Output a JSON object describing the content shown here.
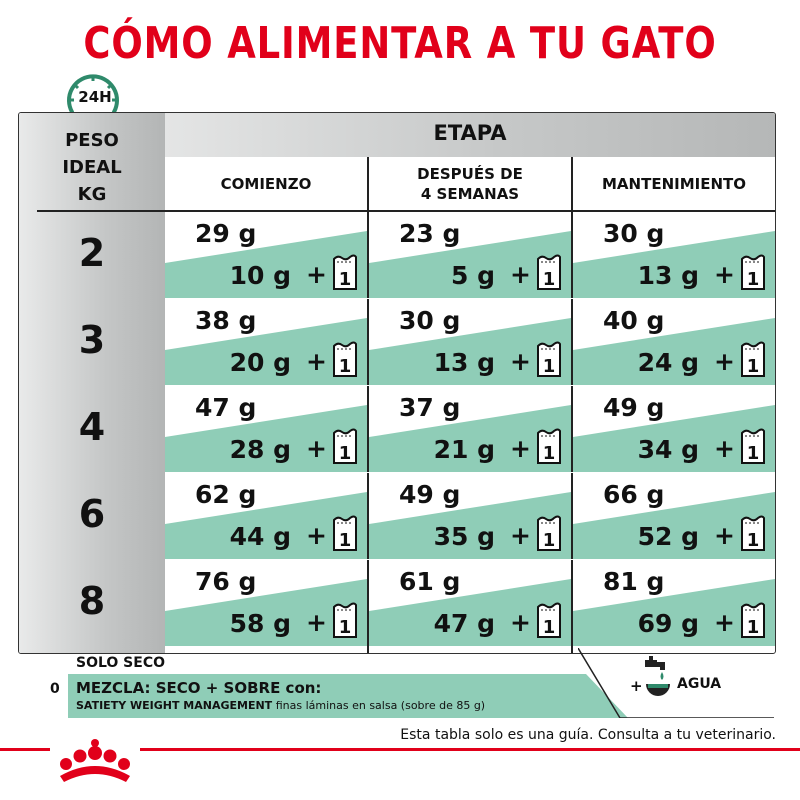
{
  "title": "CÓMO ALIMENTAR A TU GATO",
  "badge_label": "24H",
  "table": {
    "peso_header": [
      "PESO",
      "IDEAL",
      "KG"
    ],
    "etapa_header": "ETAPA",
    "stages": [
      {
        "line1": "COMIENZO",
        "line2": ""
      },
      {
        "line1": "DESPUÉS DE",
        "line2": "4 SEMANAS"
      },
      {
        "line1": "MANTENIMIENTO",
        "line2": ""
      }
    ],
    "rows": [
      {
        "weight": "2",
        "cells": [
          {
            "dry": "29 g",
            "mix": "10 g"
          },
          {
            "dry": "23 g",
            "mix": "5 g"
          },
          {
            "dry": "30 g",
            "mix": "13 g"
          }
        ]
      },
      {
        "weight": "3",
        "cells": [
          {
            "dry": "38 g",
            "mix": "20 g"
          },
          {
            "dry": "30 g",
            "mix": "13 g"
          },
          {
            "dry": "40 g",
            "mix": "24 g"
          }
        ]
      },
      {
        "weight": "4",
        "cells": [
          {
            "dry": "47 g",
            "mix": "28 g"
          },
          {
            "dry": "37 g",
            "mix": "21 g"
          },
          {
            "dry": "49 g",
            "mix": "34 g"
          }
        ]
      },
      {
        "weight": "6",
        "cells": [
          {
            "dry": "62 g",
            "mix": "44 g"
          },
          {
            "dry": "49 g",
            "mix": "35 g"
          },
          {
            "dry": "66 g",
            "mix": "52 g"
          }
        ]
      },
      {
        "weight": "8",
        "cells": [
          {
            "dry": "76 g",
            "mix": "58 g"
          },
          {
            "dry": "61 g",
            "mix": "47 g"
          },
          {
            "dry": "81 g",
            "mix": "69 g"
          }
        ]
      }
    ],
    "plus": "+",
    "pouch_count": "1"
  },
  "legend": {
    "solo_seco": "SOLO SECO",
    "zero": "0",
    "mezcla": "MEZCLA: SECO + SOBRE con:",
    "satiety_bold": "SATIETY WEIGHT MANAGEMENT",
    "satiety_rest": " finas láminas en salsa (sobre de 85 g)",
    "agua_plus": "+",
    "agua": "AGUA"
  },
  "footer": "Esta tabla solo es una guía. Consulta a tu veterinario.",
  "colors": {
    "brand_red": "#e1001a",
    "teal": "#8fcdb7",
    "teal_dark": "#2f8a6b",
    "gray": "#c4c6c6"
  },
  "icons": [
    "clock-icon",
    "pouch-icon",
    "faucet-bowl-icon",
    "royal-canin-crown-logo"
  ]
}
